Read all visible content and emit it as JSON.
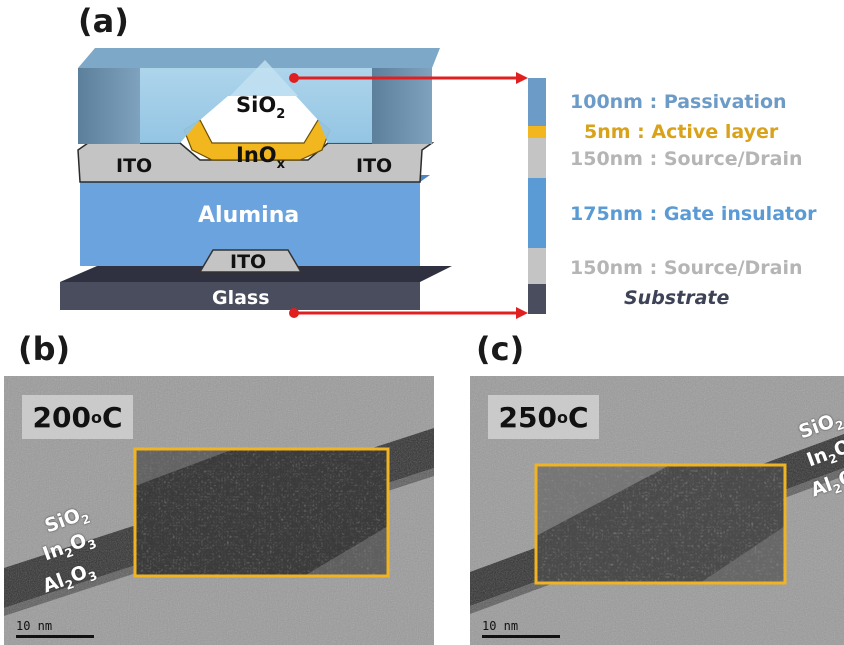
{
  "panel_a": {
    "letter": "(a)",
    "structure_labels": {
      "sio2": "SiO",
      "sio2_sub": "2",
      "inox": "InO",
      "inox_sub": "x",
      "ito_left": "ITO",
      "ito_right": "ITO",
      "alumina": "Alumina",
      "ito_bottom": "ITO",
      "glass": "Glass"
    },
    "legend": [
      {
        "text": "100nm : Passivation",
        "color": "#6c9bc8"
      },
      {
        "text": "5nm : Active layer",
        "color": "#d9a21b"
      },
      {
        "text": "150nm : Source/Drain",
        "color": "#b5b5b5"
      },
      {
        "text": "175nm : Gate insulator",
        "color": "#5b9bd5"
      },
      {
        "text": "150nm : Source/Drain",
        "color": "#b5b5b5"
      }
    ],
    "substrate_label": "Substrate",
    "colors": {
      "passivation": "#7da7c9",
      "active": "#f2b61f",
      "ito": "#c4c4c4",
      "alumina": "#6aa3dd",
      "glass": "#4a4d5e",
      "arrow": "#e02020"
    }
  },
  "panel_b": {
    "letter": "(b)",
    "temperature": "200",
    "temperature_sup": "o",
    "temperature_unit": "C",
    "layers": [
      {
        "text": "SiO",
        "sub": "2"
      },
      {
        "text": "In",
        "sub": "2",
        "tail": "O",
        "sub2": "3"
      },
      {
        "text": "Al",
        "sub": "2",
        "tail": "O",
        "sub2": "3"
      }
    ],
    "scale_bar": "10 nm"
  },
  "panel_c": {
    "letter": "(c)",
    "temperature": "250",
    "temperature_sup": "o",
    "temperature_unit": "C",
    "layers": [
      {
        "text": "SiO",
        "sub": "2"
      },
      {
        "text": "In",
        "sub": "2",
        "tail": "O",
        "sub2": "3"
      },
      {
        "text": "Al",
        "sub": "2",
        "tail": "O",
        "sub2": "3"
      }
    ],
    "scale_bar": "10 nm"
  }
}
